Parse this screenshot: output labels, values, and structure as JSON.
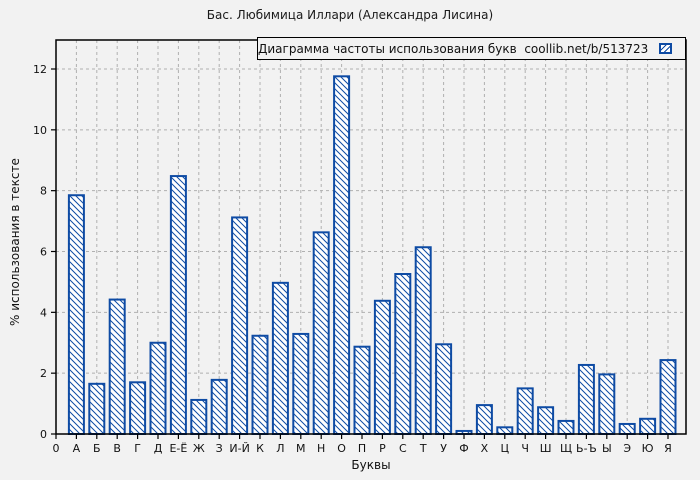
{
  "page_title": "Бас. Любимица Иллари (Александра Лисина)",
  "legend": {
    "label": "Диаграмма частоты использования букв  coollib.net/b/513723",
    "swatch": "blue-hatched-bar-swatch"
  },
  "colors": {
    "bar": "#0e4ba4",
    "grid": "#b0b0b0",
    "frame": "#000000",
    "background": "#f2f2f2"
  },
  "chart_data": {
    "type": "bar",
    "title": "Бас. Любимица Иллари (Александра Лисина)",
    "legend": "Диаграмма частоты использования букв  coollib.net/b/513723",
    "legend_position": "top-right",
    "xlabel": "Буквы",
    "ylabel": "% использования в тексте",
    "x_origin_label": "0",
    "grid": true,
    "ylim": [
      0,
      13
    ],
    "yticks": [
      0,
      2,
      4,
      6,
      8,
      10,
      12
    ],
    "categories": [
      "А",
      "Б",
      "В",
      "Г",
      "Д",
      "Е-Ё",
      "Ж",
      "З",
      "И-Й",
      "К",
      "Л",
      "М",
      "Н",
      "О",
      "П",
      "Р",
      "С",
      "Т",
      "У",
      "Ф",
      "Х",
      "Ц",
      "Ч",
      "Ш",
      "Щ",
      "Ь-Ъ",
      "Ы",
      "Э",
      "Ю",
      "Я"
    ],
    "values": [
      7.85,
      1.65,
      4.42,
      1.7,
      3.0,
      8.48,
      1.12,
      1.78,
      7.12,
      3.23,
      4.97,
      3.29,
      6.63,
      11.76,
      2.87,
      4.38,
      5.26,
      6.14,
      2.95,
      0.1,
      0.95,
      0.22,
      1.5,
      0.88,
      0.43,
      2.27,
      1.96,
      0.33,
      0.5,
      2.43
    ]
  }
}
